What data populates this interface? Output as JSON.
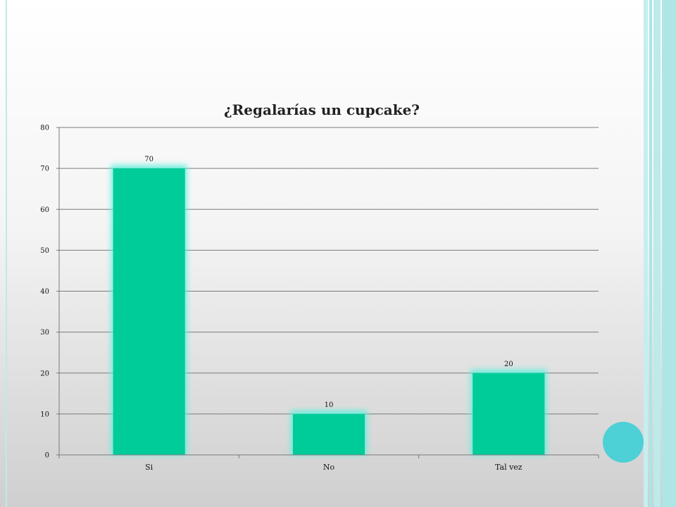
{
  "chart_data": {
    "type": "bar",
    "title": "¿Regalarías un cupcake?",
    "categories": [
      "Si",
      "No",
      "Tal vez"
    ],
    "values": [
      70,
      10,
      20
    ],
    "data_labels": [
      "70",
      "10",
      "20"
    ],
    "ylim": [
      0,
      80
    ],
    "yticks": [
      0,
      10,
      20,
      30,
      40,
      50,
      60,
      70,
      80
    ],
    "grid": true,
    "legend": "none",
    "xlabel": "",
    "ylabel": ""
  },
  "colors": {
    "bar": "#00cc99",
    "bar_glow": "#5ff0dd",
    "grid": "#7a7a7a",
    "accent_circle": "#4dd0d6",
    "side_stripe": "#a9e6e6"
  }
}
